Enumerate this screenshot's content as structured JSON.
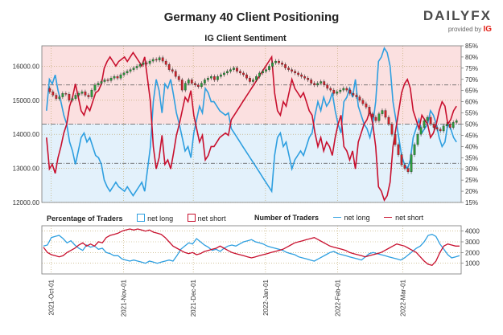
{
  "title": "Germany 40 Client Positioning",
  "logo": {
    "brand": "DAILYFX",
    "provided_by": "provided by",
    "ig": "IG"
  },
  "colors": {
    "long": "#2e9fe0",
    "short": "#c8102e",
    "up": "#2a9a3a",
    "down": "#d0202a",
    "long_zone": "#e3f1fb",
    "short_zone": "#fbe0e0"
  },
  "legend": {
    "pct_title": "Percentage of Traders",
    "num_title": "Number of Traders",
    "net_long": "net long",
    "net_short": "net short"
  },
  "chart_data": [
    {
      "type": "candlestick+line",
      "title": "IG Client Sentiment",
      "ylim_left": [
        12000,
        16600
      ],
      "yticks_left": [
        "12000.00",
        "13000.00",
        "14000.00",
        "15000.00",
        "16000.00"
      ],
      "ylim_right": [
        15,
        85
      ],
      "yticks_right": [
        "15%",
        "20%",
        "25%",
        "30%",
        "35%",
        "40%",
        "45%",
        "50%",
        "55%",
        "60%",
        "65%",
        "70%",
        "75%",
        "80%",
        "85%"
      ],
      "reference_lines_pct": [
        50,
        32.5,
        67.5
      ],
      "x_ticks": [
        "2021-Oct-01",
        "2021-Nov-01",
        "2021-Dec-01",
        "2022-Jan-01",
        "2022-Feb-01",
        "2022-Mar-01"
      ],
      "x_tick_days": [
        4,
        35,
        65,
        96,
        127,
        155
      ],
      "x_range_days": [
        0,
        180
      ],
      "price_close": [
        15350,
        15250,
        15150,
        15050,
        15100,
        15200,
        15180,
        15000,
        15050,
        15150,
        15200,
        15250,
        15150,
        15100,
        15300,
        15450,
        15500,
        15550,
        15600,
        15580,
        15650,
        15700,
        15650,
        15750,
        15800,
        15850,
        15900,
        15950,
        16000,
        16050,
        16100,
        16080,
        16150,
        16200,
        16180,
        16250,
        16150,
        16050,
        15900,
        15850,
        15700,
        15600,
        15300,
        15500,
        15600,
        15500,
        15450,
        15400,
        15500,
        15600,
        15650,
        15700,
        15600,
        15700,
        15750,
        15800,
        15850,
        15900,
        15950,
        15850,
        15800,
        15750,
        15650,
        15550,
        15600,
        15700,
        15800,
        15850,
        15900,
        16000,
        16100,
        16150,
        16100,
        16050,
        15950,
        15900,
        15850,
        15800,
        15750,
        15700,
        15650,
        15600,
        15500,
        15450,
        15500,
        15550,
        15450,
        15350,
        15300,
        15200,
        15250,
        15300,
        15350,
        15300,
        15200,
        15150,
        15100,
        15000,
        14900,
        14800,
        14600,
        14500,
        14400,
        14600,
        14700,
        14500,
        14300,
        14000,
        13700,
        13400,
        13100,
        13000,
        12900,
        13400,
        13700,
        14000,
        14200,
        14400,
        14500,
        14300,
        14200,
        14150,
        14100,
        14250,
        14300,
        14200,
        14350,
        14400
      ],
      "pct_long": [
        56,
        70,
        68,
        72,
        65,
        60,
        54,
        50,
        42,
        38,
        32,
        38,
        44,
        46,
        42,
        44,
        40,
        36,
        35,
        32,
        25,
        22,
        20,
        22,
        24,
        22,
        21,
        20,
        22,
        20,
        18,
        20,
        22,
        24,
        20,
        30,
        40,
        60,
        70,
        65,
        55,
        68,
        66,
        70,
        63,
        55,
        50,
        44,
        38,
        40,
        35,
        46,
        52,
        58,
        55,
        66,
        64,
        60,
        60,
        58,
        56,
        55,
        54,
        55,
        48,
        46,
        44,
        42,
        40,
        38,
        36,
        34,
        32,
        30,
        28,
        26,
        24,
        22,
        20,
        36,
        44,
        46,
        40,
        42,
        36,
        30,
        34,
        36,
        38,
        36,
        40,
        44,
        46,
        54,
        60,
        56,
        62,
        58,
        60,
        64,
        56,
        50,
        46,
        60,
        62,
        66,
        62,
        70,
        58,
        54,
        50,
        48,
        44,
        50,
        60,
        78,
        80,
        84,
        82,
        76,
        60,
        52,
        44,
        36,
        32,
        30,
        34,
        44,
        48,
        52,
        46,
        48,
        50,
        56,
        54,
        50,
        44,
        40,
        42,
        50,
        48,
        44,
        42
      ],
      "pct_candle_span_days": [
        2,
        178
      ]
    },
    {
      "type": "line",
      "ylim": [
        0,
        4500
      ],
      "yticks": [
        "1000",
        "2000",
        "3000",
        "4000"
      ],
      "series": [
        {
          "name": "net long",
          "values": [
            2600,
            2700,
            3400,
            3500,
            3600,
            3300,
            2900,
            3100,
            2700,
            2400,
            2200,
            2700,
            2500,
            2600,
            2300,
            2400,
            2000,
            1900,
            1700,
            1700,
            1400,
            1300,
            1200,
            1300,
            1200,
            1100,
            1000,
            1200,
            1100,
            1000,
            1100,
            1200,
            1300,
            1200,
            1700,
            2300,
            2600,
            2900,
            2800,
            3300,
            3000,
            2700,
            2500,
            2200,
            2300,
            2100,
            2400,
            2600,
            2700,
            2600,
            2800,
            3000,
            3100,
            3200,
            3000,
            2900,
            2800,
            2600,
            2500,
            2400,
            2300,
            2200,
            2000,
            1900,
            1800,
            1600,
            1500,
            1400,
            1300,
            1200,
            1400,
            1600,
            1800,
            2000,
            2100,
            1900,
            1800,
            1700,
            1600,
            1500,
            1400,
            1300,
            1600,
            1900,
            2000,
            1900,
            1800,
            1700,
            1600,
            1500,
            1400,
            1300,
            1500,
            1800,
            2100,
            2400,
            2600,
            3000,
            3600,
            3700,
            3500,
            2800,
            2300,
            1800,
            1500,
            1600,
            1700
          ]
        },
        {
          "name": "net short",
          "values": [
            2500,
            2000,
            1800,
            1700,
            1600,
            1700,
            2000,
            2200,
            2400,
            2700,
            2900,
            2600,
            2800,
            2600,
            3000,
            2900,
            3400,
            3600,
            3700,
            3800,
            4000,
            4100,
            4200,
            4100,
            4200,
            4100,
            4000,
            4100,
            3900,
            3800,
            3700,
            3400,
            3000,
            2600,
            2400,
            2200,
            2000,
            1900,
            2000,
            1800,
            1900,
            2100,
            2200,
            2300,
            2400,
            2600,
            2400,
            2200,
            2000,
            1900,
            1800,
            1700,
            1600,
            1500,
            1600,
            1700,
            1800,
            1900,
            2000,
            2100,
            2200,
            2300,
            2500,
            2700,
            2900,
            3000,
            3100,
            3200,
            3300,
            3400,
            3200,
            3000,
            2800,
            2600,
            2500,
            2400,
            2300,
            2200,
            2000,
            1900,
            1800,
            1700,
            1600,
            1700,
            1800,
            1900,
            2000,
            2200,
            2400,
            2600,
            2800,
            2700,
            2600,
            2400,
            2200,
            2000,
            1600,
            1200,
            900,
            800,
            1200,
            2000,
            2600,
            2800,
            2700,
            2600,
            2600
          ]
        }
      ],
      "x_ticks": [
        "2021-Oct-01",
        "2021-Nov-01",
        "2021-Dec-01",
        "2022-Jan-01",
        "2022-Feb-01",
        "2022-Mar-01"
      ]
    }
  ]
}
